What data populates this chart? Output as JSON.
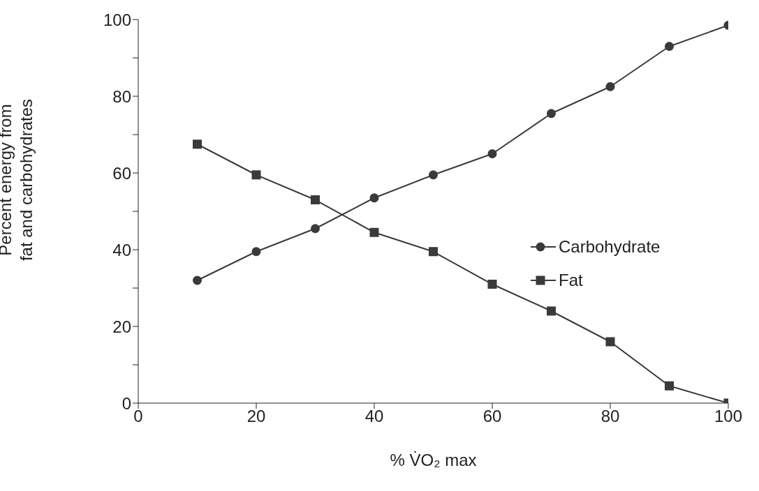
{
  "chart_data": {
    "type": "line",
    "xlabel": "% V̇O₂ max",
    "ylabel": "Percent energy from fat and carbohydrates",
    "x": [
      10,
      20,
      30,
      40,
      50,
      60,
      70,
      80,
      90,
      100
    ],
    "series": [
      {
        "name": "Carbohydrate",
        "color": "#3a3a3a",
        "marker": "circle",
        "values": [
          32,
          39.5,
          45.5,
          53.5,
          59.5,
          65,
          75.5,
          82.5,
          93,
          98.5
        ]
      },
      {
        "name": "Fat",
        "color": "#3a3a3a",
        "marker": "square",
        "values": [
          67.5,
          59.5,
          53,
          44.5,
          39.5,
          31,
          24,
          16,
          4.5,
          0
        ]
      }
    ],
    "xlim": [
      0,
      100
    ],
    "xticks": [
      0,
      20,
      40,
      60,
      80,
      100
    ],
    "ylim": [
      0,
      100
    ],
    "yticks": [
      0,
      {
        "value": 10,
        "label": null
      },
      20,
      {
        "value": 30,
        "label": null
      },
      40,
      {
        "value": 50,
        "label": null
      },
      60,
      {
        "value": 70,
        "label": null
      },
      80,
      {
        "value": 90,
        "label": null
      },
      100
    ],
    "legend": "right",
    "line_style": "solid",
    "grid": false
  }
}
